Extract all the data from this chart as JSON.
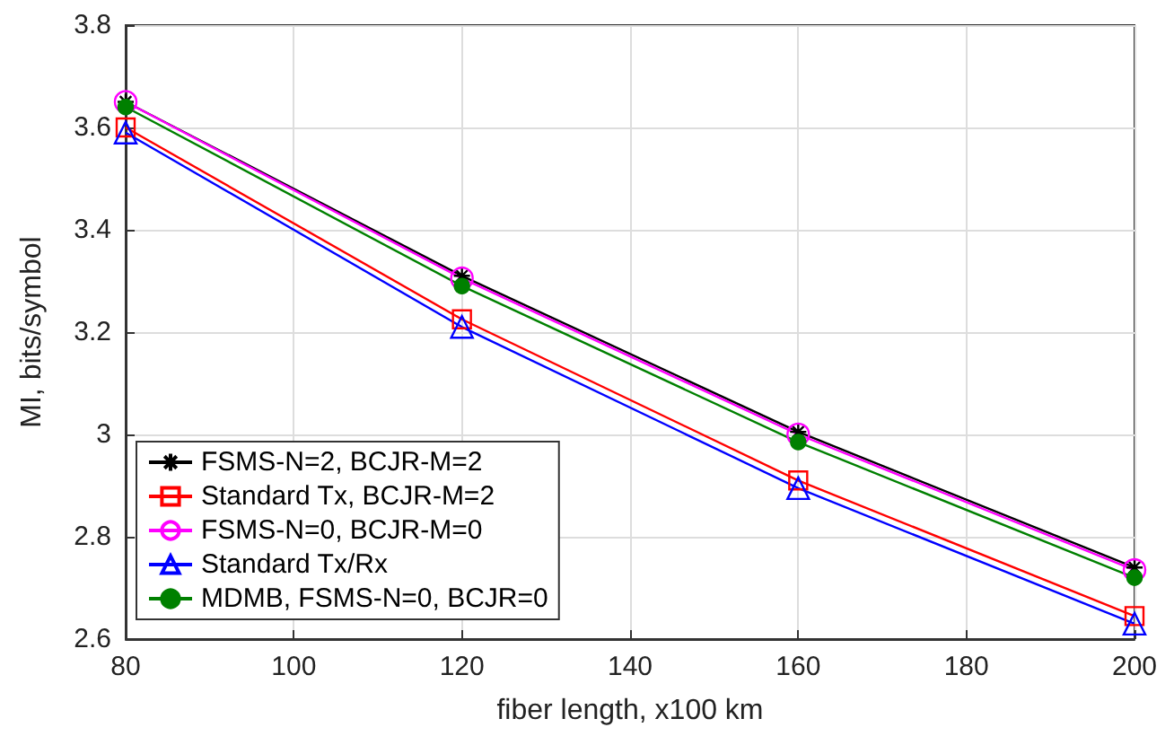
{
  "chart_data": {
    "type": "line",
    "xlabel": "fiber length, x100 km",
    "ylabel": "MI, bits/symbol",
    "x": [
      80,
      120,
      160,
      200
    ],
    "series": [
      {
        "name": "FSMS-N=2, BCJR-M=2",
        "color": "#000000",
        "marker": "cross",
        "values": [
          3.65,
          3.31,
          3.005,
          2.74
        ]
      },
      {
        "name": "Standard Tx, BCJR-M=2",
        "color": "#ff0000",
        "marker": "square",
        "values": [
          3.6,
          3.225,
          2.91,
          2.645
        ]
      },
      {
        "name": "FSMS-N=0, BCJR-M=0",
        "color": "#ff00ff",
        "marker": "circle",
        "values": [
          3.65,
          3.305,
          3.0,
          2.735
        ]
      },
      {
        "name": "Standard Tx/Rx",
        "color": "#0000ff",
        "marker": "triangle",
        "values": [
          3.59,
          3.21,
          2.895,
          2.63
        ]
      },
      {
        "name": "MDMB, FSMS-N=0, BCJR=0",
        "color": "#008000",
        "marker": "dot",
        "values": [
          3.64,
          3.29,
          2.985,
          2.72
        ]
      }
    ],
    "xlim": [
      80,
      200
    ],
    "xticks": [
      80,
      100,
      120,
      140,
      160,
      180,
      200
    ],
    "ylim": [
      2.6,
      3.8
    ],
    "yticks": [
      2.6,
      2.8,
      3,
      3.2,
      3.4,
      3.6,
      3.8
    ],
    "grid": true,
    "legend": "bottom left"
  }
}
